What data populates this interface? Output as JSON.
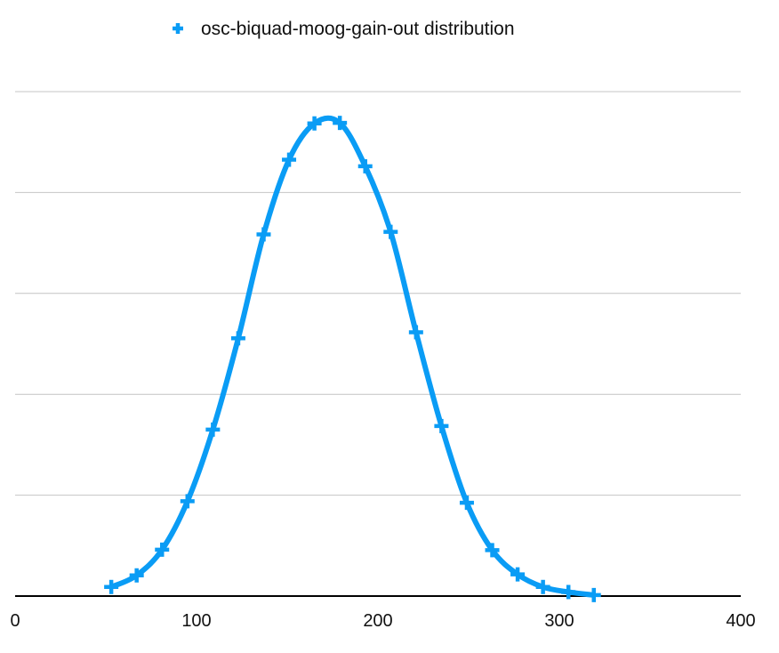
{
  "chart_data": {
    "type": "line",
    "title": "",
    "xlabel": "",
    "ylabel": "",
    "xlim": [
      0,
      400
    ],
    "ylim": [
      0,
      1
    ],
    "x_ticks": [
      0,
      100,
      200,
      300,
      400
    ],
    "x_tick_labels": [
      "0",
      "100",
      "200",
      "300",
      "400"
    ],
    "y_gridlines": [
      0.2,
      0.4,
      0.6,
      0.8,
      1.0
    ],
    "y_tick_labels_shown": false,
    "grid": "horizontal",
    "legend": {
      "placement": "top-center",
      "entries": [
        {
          "label": "osc-biquad-moog-gain-out distribution",
          "marker": "plus"
        }
      ]
    },
    "series": [
      {
        "name": "osc-biquad-moog-gain-out distribution",
        "color": "#0a9cf5",
        "marker": "plus",
        "smooth": true,
        "x": [
          53,
          67,
          81,
          95,
          109,
          123,
          137,
          151,
          165,
          179,
          193,
          207,
          221,
          235,
          249,
          263,
          277,
          291,
          305,
          319
        ],
        "y": [
          0.018,
          0.041,
          0.092,
          0.188,
          0.33,
          0.511,
          0.717,
          0.865,
          0.937,
          0.938,
          0.852,
          0.722,
          0.523,
          0.337,
          0.185,
          0.091,
          0.043,
          0.018,
          0.008,
          0.002
        ]
      }
    ]
  }
}
